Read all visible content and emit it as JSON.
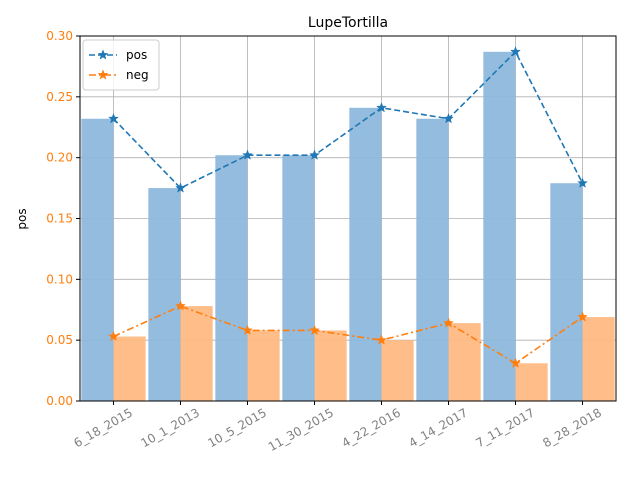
{
  "chart_data": {
    "type": "bar",
    "title": "LupeTortilla",
    "xlabel": "",
    "ylabel": "pos",
    "ylim": [
      0,
      0.3
    ],
    "yticks": [
      "0.00",
      "0.05",
      "0.10",
      "0.15",
      "0.20",
      "0.25",
      "0.30"
    ],
    "grid": true,
    "legend_position": "top-left",
    "categories": [
      "6_18_2015",
      "10_1_2013",
      "10_5_2015",
      "11_30_2015",
      "4_22_2016",
      "4_14_2017",
      "7_11_2017",
      "8_28_2018"
    ],
    "series": [
      {
        "name": "pos",
        "values": [
          0.232,
          0.175,
          0.202,
          0.202,
          0.241,
          0.232,
          0.287,
          0.179
        ],
        "bar_color": "#8db8dc",
        "line_color": "#1f77b4",
        "line_style": "dashed",
        "marker": "star"
      },
      {
        "name": "neg",
        "values": [
          0.053,
          0.078,
          0.058,
          0.058,
          0.05,
          0.064,
          0.031,
          0.069
        ],
        "bar_color": "#ffbb83",
        "line_color": "#ff7f0e",
        "line_style": "dashdot",
        "marker": "star"
      }
    ],
    "ytick_color": "#ff7f0e",
    "xtick_color": "#808080",
    "grid_color": "#b0b0b0"
  }
}
